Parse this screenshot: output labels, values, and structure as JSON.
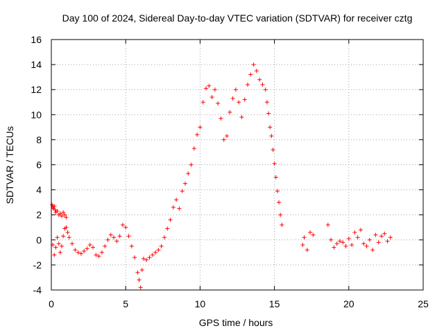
{
  "chart_data": {
    "type": "scatter",
    "title": "Day 100 of 2024, Sidereal Day-to-day VTEC variation (SDTVAR) for receiver cztg",
    "xlabel": "GPS time / hours",
    "ylabel": "SDTVAR / TECUs",
    "xlim": [
      0,
      25
    ],
    "ylim": [
      -4,
      16
    ],
    "xticks": [
      0,
      5,
      10,
      15,
      20,
      25
    ],
    "yticks": [
      -4,
      -2,
      0,
      2,
      4,
      6,
      8,
      10,
      12,
      14,
      16
    ],
    "grid": true,
    "marker": "+",
    "color": "#ff0000",
    "series": [
      {
        "name": "SDTVAR",
        "x": [
          0.05,
          0.1,
          0.15,
          0.2,
          0.25,
          0.3,
          0.4,
          0.5,
          0.6,
          0.7,
          0.8,
          0.9,
          1.0,
          0.1,
          0.2,
          0.3,
          0.4,
          0.5,
          0.6,
          0.7,
          0.8,
          0.9,
          1.0,
          1.1,
          1.2,
          1.4,
          1.6,
          1.8,
          2.0,
          2.2,
          2.4,
          2.6,
          2.8,
          3.0,
          3.2,
          3.4,
          3.6,
          3.8,
          4.0,
          4.2,
          4.4,
          4.6,
          4.8,
          5.0,
          5.2,
          5.4,
          5.6,
          5.8,
          5.9,
          6.0,
          6.1,
          6.2,
          6.4,
          6.6,
          6.8,
          7.0,
          7.2,
          7.4,
          7.6,
          7.8,
          8.0,
          8.2,
          8.4,
          8.6,
          8.8,
          9.0,
          9.2,
          9.4,
          9.6,
          9.8,
          10.0,
          10.2,
          10.4,
          10.6,
          10.8,
          11.0,
          11.2,
          11.4,
          11.6,
          11.8,
          12.0,
          12.2,
          12.4,
          12.6,
          12.8,
          13.0,
          13.2,
          13.4,
          13.6,
          13.8,
          14.0,
          14.2,
          14.4,
          14.5,
          14.6,
          14.7,
          14.8,
          14.9,
          15.0,
          15.1,
          15.2,
          15.3,
          15.4,
          15.5,
          16.9,
          17.0,
          17.2,
          17.4,
          17.6,
          18.6,
          18.8,
          19.0,
          19.2,
          19.4,
          19.6,
          19.8,
          20.0,
          20.2,
          20.4,
          20.6,
          20.8,
          21.0,
          21.2,
          21.4,
          21.6,
          21.8,
          22.0,
          22.2,
          22.4,
          22.6,
          22.8
        ],
        "y": [
          2.8,
          2.6,
          2.5,
          2.7,
          2.4,
          2.2,
          2.3,
          2.0,
          2.1,
          1.9,
          2.2,
          2.0,
          1.8,
          -0.4,
          -1.2,
          -0.6,
          0.2,
          -0.3,
          -1.0,
          -0.5,
          0.3,
          0.9,
          1.0,
          0.6,
          0.2,
          -0.3,
          -0.8,
          -1.0,
          -1.1,
          -0.9,
          -0.7,
          -0.4,
          -0.6,
          -1.2,
          -1.3,
          -1.0,
          -0.5,
          0.0,
          0.4,
          0.2,
          -0.1,
          0.3,
          1.2,
          1.0,
          0.3,
          -0.5,
          -1.4,
          -2.6,
          -3.2,
          -3.8,
          -2.4,
          -1.5,
          -1.6,
          -1.4,
          -1.2,
          -1.0,
          -0.8,
          -0.5,
          0.2,
          0.9,
          1.6,
          2.6,
          3.2,
          2.5,
          3.9,
          4.5,
          5.3,
          6.0,
          7.3,
          8.4,
          9.0,
          11.0,
          12.1,
          12.3,
          11.4,
          12.0,
          10.9,
          9.7,
          8.0,
          8.3,
          10.2,
          11.3,
          12.0,
          11.0,
          9.8,
          11.2,
          12.4,
          13.2,
          14.0,
          13.5,
          12.8,
          12.4,
          12.0,
          11.0,
          10.1,
          9.0,
          8.3,
          7.2,
          6.1,
          5.0,
          3.9,
          3.0,
          2.0,
          1.2,
          -0.4,
          0.2,
          -0.8,
          0.6,
          0.4,
          1.2,
          0.0,
          -0.6,
          -0.3,
          -0.1,
          -0.2,
          -0.5,
          0.1,
          -0.4,
          0.6,
          0.2,
          0.8,
          -0.3,
          -0.5,
          0.0,
          -0.8,
          0.4,
          -0.2,
          0.3,
          0.5,
          -0.1,
          0.2
        ]
      }
    ]
  }
}
